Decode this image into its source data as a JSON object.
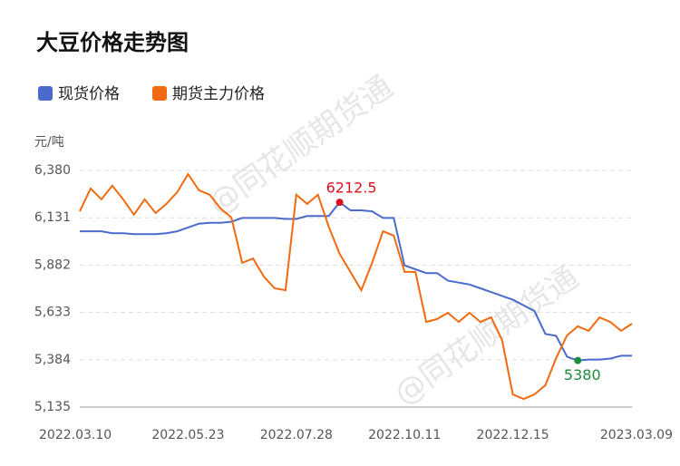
{
  "chart_data": {
    "type": "line",
    "title": "大豆价格走势图",
    "y_unit": "元/吨",
    "watermark": "@同花顺期货通",
    "categories": [
      "2022.03.10",
      null,
      null,
      null,
      null,
      null,
      null,
      null,
      null,
      null,
      "2022.05.23",
      null,
      null,
      null,
      null,
      null,
      null,
      null,
      null,
      null,
      "2022.07.28",
      null,
      null,
      null,
      null,
      null,
      null,
      null,
      null,
      null,
      "2022.10.11",
      null,
      null,
      null,
      null,
      null,
      null,
      null,
      null,
      null,
      "2022.12.15",
      null,
      null,
      null,
      null,
      null,
      null,
      null,
      null,
      null,
      null,
      "2023.03.09"
    ],
    "ylim": [
      5135,
      6380
    ],
    "yticks": [
      {
        "value": 5135,
        "label": "5,135"
      },
      {
        "value": 5384,
        "label": "5,384"
      },
      {
        "value": 5633,
        "label": "5,633"
      },
      {
        "value": 5882,
        "label": "5,882"
      },
      {
        "value": 6131,
        "label": "6,131"
      },
      {
        "value": 6380,
        "label": "6,380"
      }
    ],
    "grid": true,
    "series": [
      {
        "name": "现货价格",
        "color": "#4a6bcc",
        "values": [
          6060,
          6060,
          6060,
          6050,
          6050,
          6045,
          6045,
          6045,
          6050,
          6060,
          6080,
          6100,
          6105,
          6105,
          6110,
          6130,
          6130,
          6130,
          6130,
          6125,
          6125,
          6140,
          6140,
          6140,
          6212.5,
          6170,
          6170,
          6165,
          6130,
          6130,
          5880,
          5860,
          5840,
          5840,
          5800,
          5790,
          5780,
          5760,
          5740,
          5720,
          5700,
          5670,
          5640,
          5520,
          5510,
          5400,
          5380,
          5385,
          5385,
          5390,
          5405,
          5405
        ]
      },
      {
        "name": "期货主力价格",
        "color": "#f26a10",
        "values": [
          6165,
          6285,
          6228,
          6300,
          6228,
          6147,
          6228,
          6156,
          6204,
          6266,
          6361,
          6276,
          6252,
          6180,
          6132,
          5894,
          5917,
          5822,
          5760,
          5750,
          6252,
          6204,
          6252,
          6084,
          5941,
          5846,
          5750,
          5894,
          6060,
          6037,
          5846,
          5846,
          5583,
          5598,
          5631,
          5583,
          5631,
          5583,
          5607,
          5488,
          5202,
          5178,
          5202,
          5250,
          5393,
          5512,
          5560,
          5536,
          5607,
          5583,
          5536,
          5574
        ]
      }
    ],
    "annotations": [
      {
        "series": 0,
        "index": 24,
        "value": 6212.5,
        "color": "#e0101e"
      },
      {
        "series": 0,
        "index": 46,
        "value": 5380,
        "color": "#1e8c3c"
      }
    ]
  }
}
